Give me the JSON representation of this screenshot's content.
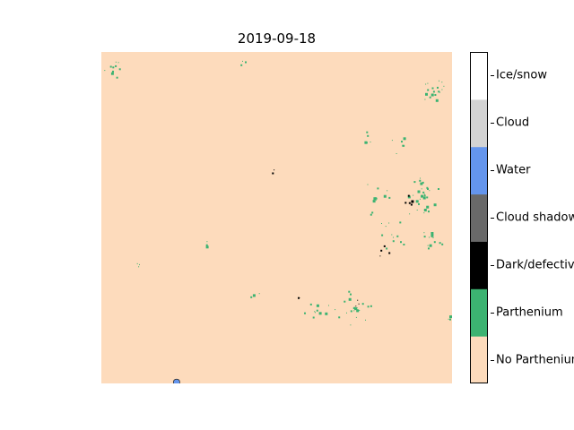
{
  "title": "2019-09-18",
  "chart_data": {
    "type": "heatmap",
    "title": "2019-09-18",
    "colorbar": {
      "position": "right",
      "classes": [
        {
          "label": "No Parthenium",
          "color": "#FDDBBC"
        },
        {
          "label": "Parthenium",
          "color": "#3CB371"
        },
        {
          "label": "Dark/defective",
          "color": "#000000"
        },
        {
          "label": "Cloud shadow",
          "color": "#696969"
        },
        {
          "label": "Water",
          "color": "#6495ED"
        },
        {
          "label": "Cloud",
          "color": "#D3D3D3"
        },
        {
          "label": "Ice/snow",
          "color": "#FFFFFF"
        }
      ]
    },
    "dominant_class": "No Parthenium",
    "scattered_classes": [
      "Parthenium",
      "Dark/defective"
    ],
    "features": [
      {
        "class": "Parthenium",
        "u": 0.03,
        "v": 0.05,
        "n": 10,
        "r": 0.03
      },
      {
        "class": "Parthenium",
        "u": 0.4,
        "v": 0.03,
        "n": 3,
        "r": 0.02
      },
      {
        "class": "Parthenium",
        "u": 0.95,
        "v": 0.12,
        "n": 18,
        "r": 0.05
      },
      {
        "class": "Parthenium",
        "u": 0.75,
        "v": 0.26,
        "n": 5,
        "r": 0.02
      },
      {
        "class": "Parthenium",
        "u": 0.85,
        "v": 0.28,
        "n": 6,
        "r": 0.03
      },
      {
        "class": "Parthenium",
        "u": 0.92,
        "v": 0.43,
        "n": 30,
        "r": 0.07
      },
      {
        "class": "Parthenium",
        "u": 0.78,
        "v": 0.44,
        "n": 12,
        "r": 0.05
      },
      {
        "class": "Parthenium",
        "u": 0.83,
        "v": 0.55,
        "n": 12,
        "r": 0.05
      },
      {
        "class": "Parthenium",
        "u": 0.93,
        "v": 0.58,
        "n": 12,
        "r": 0.05
      },
      {
        "class": "Parthenium",
        "u": 0.72,
        "v": 0.77,
        "n": 22,
        "r": 0.06
      },
      {
        "class": "Parthenium",
        "u": 0.61,
        "v": 0.78,
        "n": 10,
        "r": 0.05
      },
      {
        "class": "Parthenium",
        "u": 0.3,
        "v": 0.58,
        "n": 3,
        "r": 0.01
      },
      {
        "class": "Parthenium",
        "u": 0.44,
        "v": 0.73,
        "n": 3,
        "r": 0.02
      },
      {
        "class": "Parthenium",
        "u": 0.99,
        "v": 0.8,
        "n": 3,
        "r": 0.01
      },
      {
        "class": "Parthenium",
        "u": 0.1,
        "v": 0.64,
        "n": 3,
        "r": 0.01
      },
      {
        "class": "Dark/defective",
        "u": 0.88,
        "v": 0.45,
        "n": 5,
        "r": 0.02
      },
      {
        "class": "Dark/defective",
        "u": 0.8,
        "v": 0.6,
        "n": 4,
        "r": 0.02
      },
      {
        "class": "Dark/defective",
        "u": 0.73,
        "v": 0.76,
        "n": 3,
        "r": 0.02
      },
      {
        "class": "Dark/defective",
        "u": 0.49,
        "v": 0.36,
        "n": 2,
        "r": 0.01
      },
      {
        "class": "Dark/defective",
        "u": 0.56,
        "v": 0.74,
        "n": 2,
        "r": 0.01
      },
      {
        "class": "Water",
        "u": 0.205,
        "v": 0.987,
        "n": 1,
        "r": 0.005
      }
    ]
  }
}
